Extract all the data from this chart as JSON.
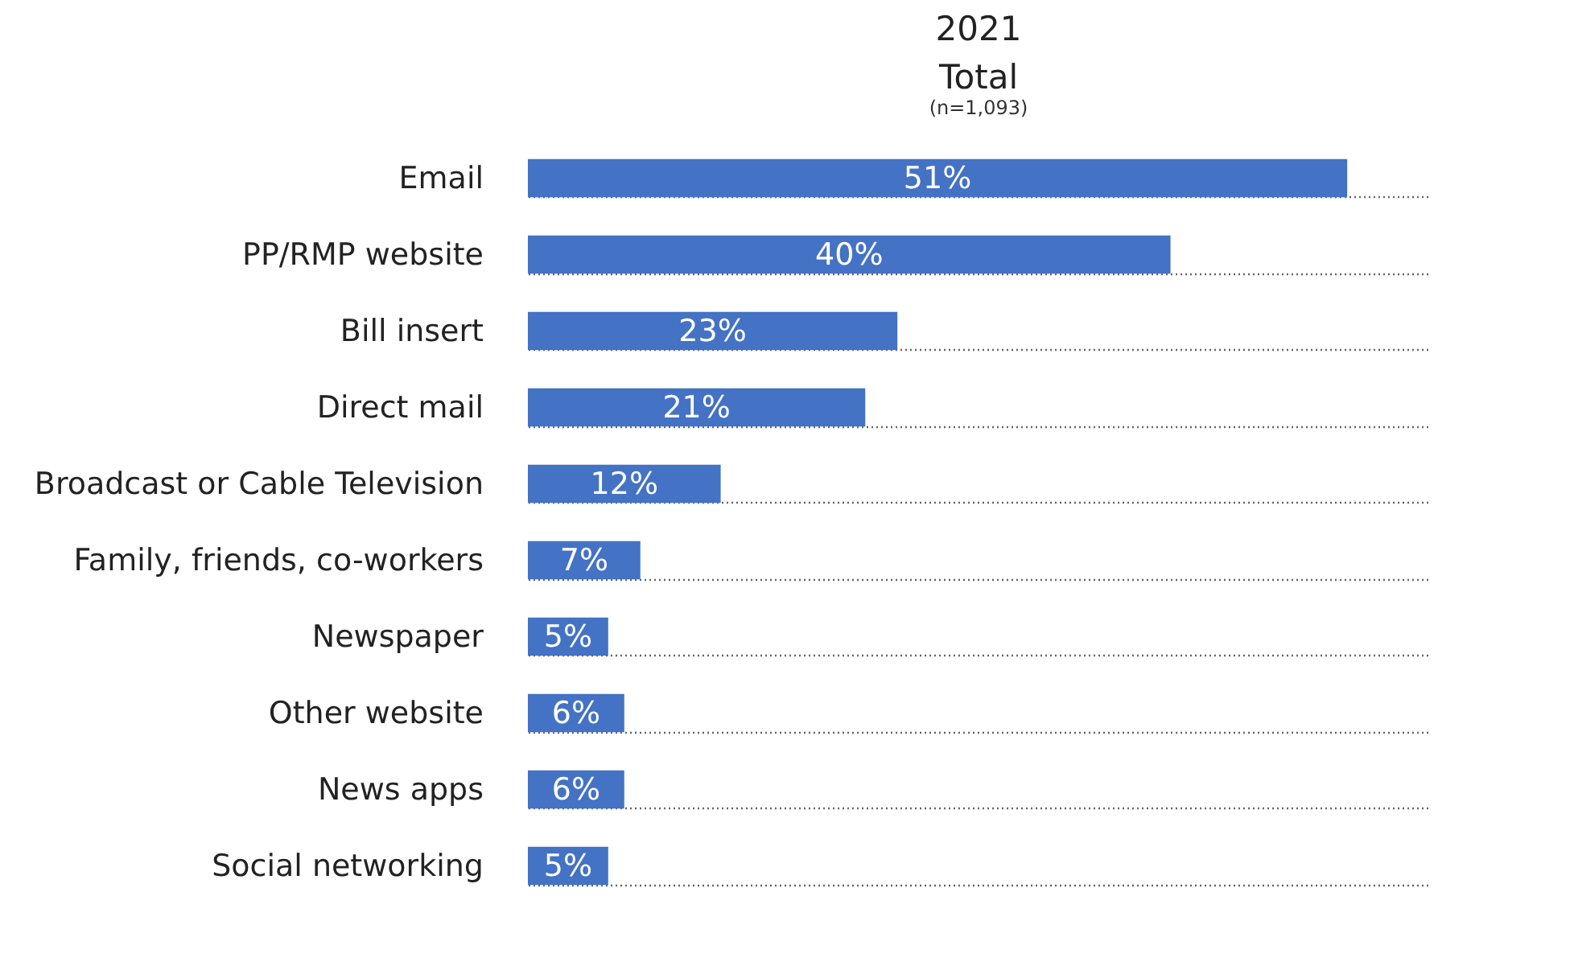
{
  "chart_data": {
    "type": "bar",
    "orientation": "horizontal",
    "title": "2021",
    "subtitle": "Total",
    "annotations": [
      "(n=1,093)"
    ],
    "categories": [
      "Email",
      "PP/RMP website",
      "Bill insert",
      "Direct mail",
      "Broadcast or Cable Television",
      "Family, friends, co-workers",
      "Newspaper",
      "Other website",
      "News apps",
      "Social networking"
    ],
    "values": [
      51,
      40,
      23,
      21,
      12,
      7,
      5,
      6,
      6,
      5
    ],
    "color": "#4472c4",
    "data_labels": true,
    "value_labels": [
      "51%",
      "40%",
      "23%",
      "21%",
      "12%",
      "7%",
      "5%",
      "6%",
      "6%",
      "5%"
    ],
    "grid": "y",
    "tick_labels": "y"
  }
}
